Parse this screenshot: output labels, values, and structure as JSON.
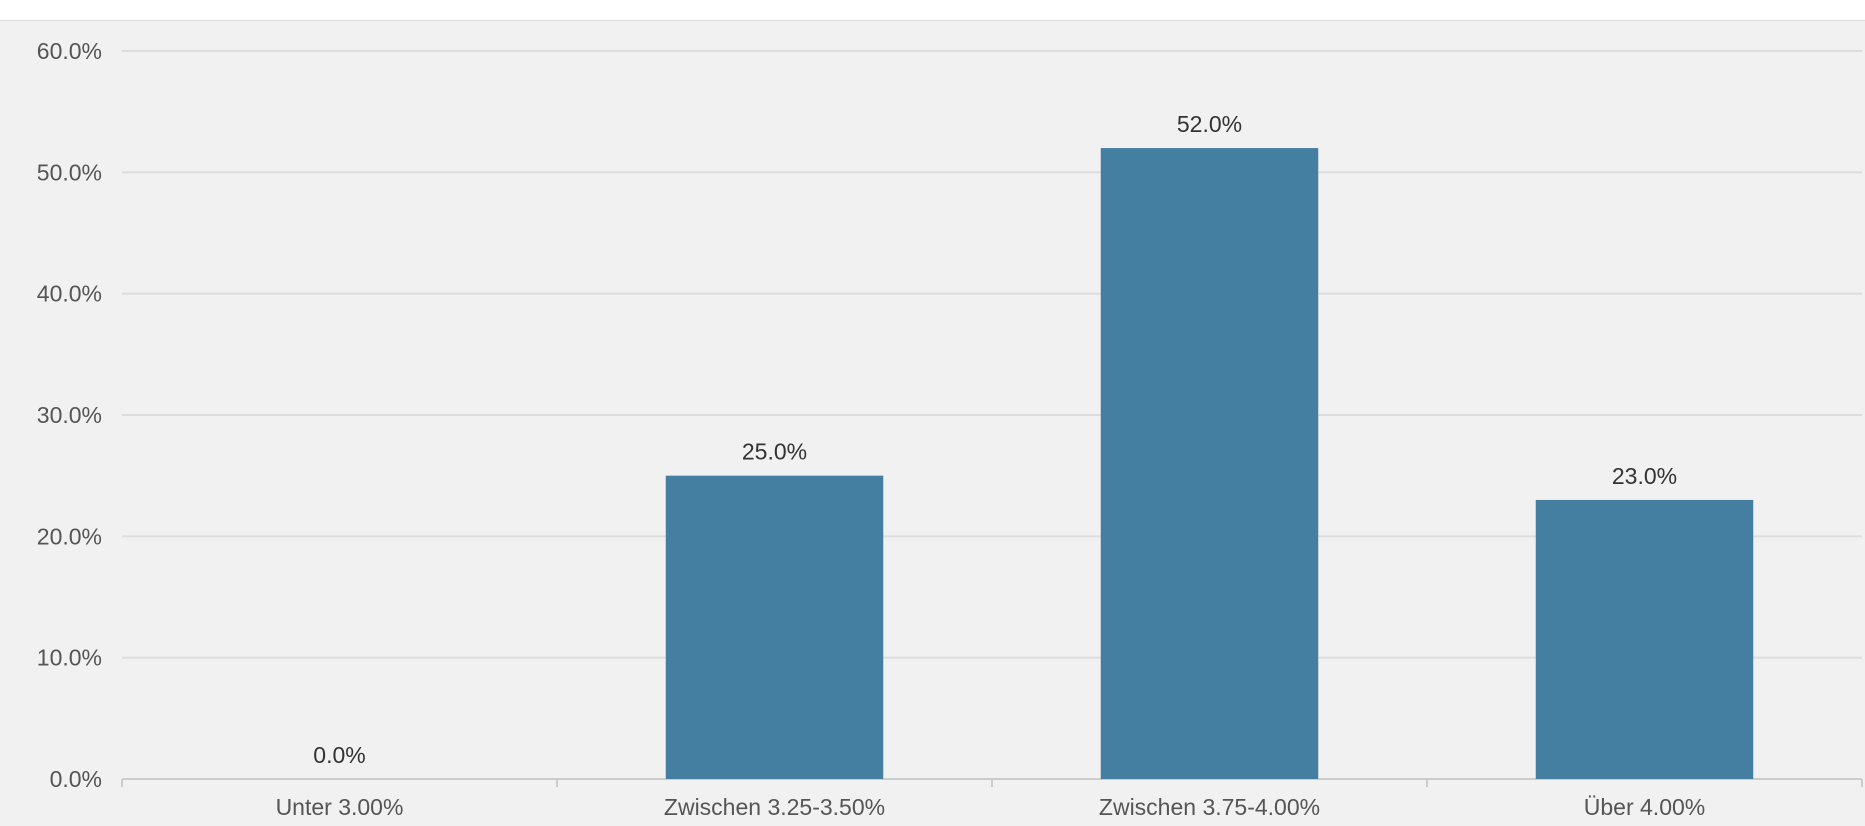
{
  "chart_data": {
    "type": "bar",
    "categories": [
      "Unter 3.00%",
      "Zwischen 3.25-3.50%",
      "Zwischen 3.75-4.00%",
      "Über 4.00%"
    ],
    "values": [
      0.0,
      25.0,
      52.0,
      23.0
    ],
    "data_labels": [
      "0.0%",
      "25.0%",
      "52.0%",
      "23.0%"
    ],
    "ylim": [
      0,
      60
    ],
    "y_ticks": [
      0,
      10,
      20,
      30,
      40,
      50,
      60
    ],
    "y_tick_labels": [
      "0.0%",
      "10.0%",
      "20.0%",
      "30.0%",
      "40.0%",
      "50.0%",
      "60.0%"
    ],
    "grid": true,
    "legend": "none",
    "bar_color": "#447fa1",
    "background_color": "#f1f1f1",
    "gridline_color": "#dddddd"
  }
}
